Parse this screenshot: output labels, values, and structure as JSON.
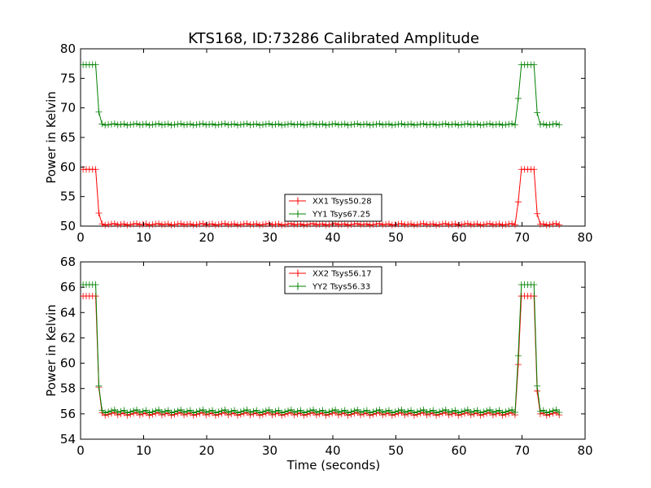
{
  "figure": {
    "title": "KTS168, ID:73286 Calibrated Amplitude",
    "xlabel": "Time (seconds)"
  },
  "colors": {
    "xx": "#ff0000",
    "yy": "#008000"
  },
  "chart_data": [
    {
      "type": "line",
      "title": "KTS168, ID:73286 Calibrated Amplitude",
      "xlabel": "",
      "ylabel": "Power in Kelvin",
      "xlim": [
        0,
        80
      ],
      "ylim": [
        50,
        80
      ],
      "xticks": [
        0,
        10,
        20,
        30,
        40,
        50,
        60,
        70,
        80
      ],
      "yticks": [
        50,
        55,
        60,
        65,
        70,
        75,
        80
      ],
      "legend": "lower-center",
      "grid": false,
      "series": [
        {
          "name": "XX1 Tsys50.28",
          "color": "#ff0000",
          "on_value": 59.6,
          "off_value": 50.3,
          "transition_values": [
            52.2,
            54.1,
            52.1
          ]
        },
        {
          "name": "YY1 Tsys67.25",
          "color": "#008000",
          "on_value": 77.3,
          "off_value": 67.2,
          "transition_values": [
            69.3,
            71.6,
            69.2
          ]
        }
      ]
    },
    {
      "type": "line",
      "title": "",
      "xlabel": "Time (seconds)",
      "ylabel": "Power in Kelvin",
      "xlim": [
        0,
        80
      ],
      "ylim": [
        54,
        68
      ],
      "xticks": [
        0,
        10,
        20,
        30,
        40,
        50,
        60,
        70,
        80
      ],
      "yticks": [
        54,
        56,
        58,
        60,
        62,
        64,
        66,
        68
      ],
      "legend": "upper-center",
      "grid": false,
      "series": [
        {
          "name": "XX2 Tsys56.17",
          "color": "#ff0000",
          "on_value": 65.3,
          "off_value": 56.0,
          "transition_values": [
            58.1,
            59.9,
            57.8
          ]
        },
        {
          "name": "YY2 Tsys56.33",
          "color": "#008000",
          "on_value": 66.2,
          "off_value": 56.2,
          "transition_values": [
            58.2,
            60.6,
            58.2
          ]
        }
      ]
    }
  ]
}
